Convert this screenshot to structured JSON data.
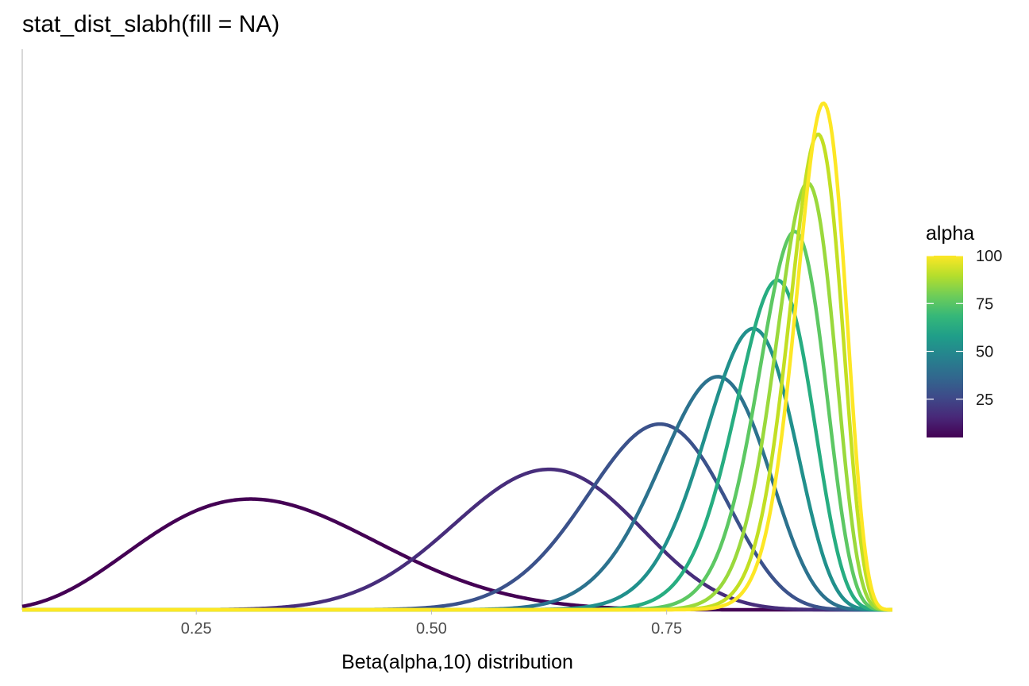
{
  "chart_data": {
    "type": "line",
    "title": "stat_dist_slabh(fill = NA)",
    "xlabel": "Beta(alpha,10) distribution",
    "ylabel": "",
    "xlim": [
      0.065,
      0.99
    ],
    "x_ticks": [
      "0.25",
      "0.50",
      "0.75"
    ],
    "x_tick_values": [
      0.25,
      0.5,
      0.75
    ],
    "y_ticks": [],
    "grid": false,
    "distribution": "Beta(alpha, 10)",
    "series": [
      {
        "alpha": 5,
        "color": "#440154"
      },
      {
        "alpha": 16,
        "color": "#472D7B"
      },
      {
        "alpha": 27,
        "color": "#3B528B"
      },
      {
        "alpha": 38,
        "color": "#2C728E"
      },
      {
        "alpha": 49,
        "color": "#21908C"
      },
      {
        "alpha": 60,
        "color": "#27AD81"
      },
      {
        "alpha": 71,
        "color": "#5DC863"
      },
      {
        "alpha": 82,
        "color": "#9AD93C"
      },
      {
        "alpha": 93,
        "color": "#C2DF23"
      },
      {
        "alpha": 100,
        "color": "#FDE725"
      }
    ],
    "legend": {
      "title": "alpha",
      "position": "right",
      "type": "colorbar",
      "range": [
        5,
        100
      ],
      "labels": [
        "100",
        "75",
        "50",
        "25"
      ],
      "label_values": [
        100,
        75,
        50,
        25
      ],
      "colors": [
        "#440154",
        "#482878",
        "#3E4A89",
        "#31688E",
        "#26828E",
        "#1F9E89",
        "#35B779",
        "#6DCD59",
        "#B4DE2C",
        "#FDE725"
      ]
    }
  }
}
